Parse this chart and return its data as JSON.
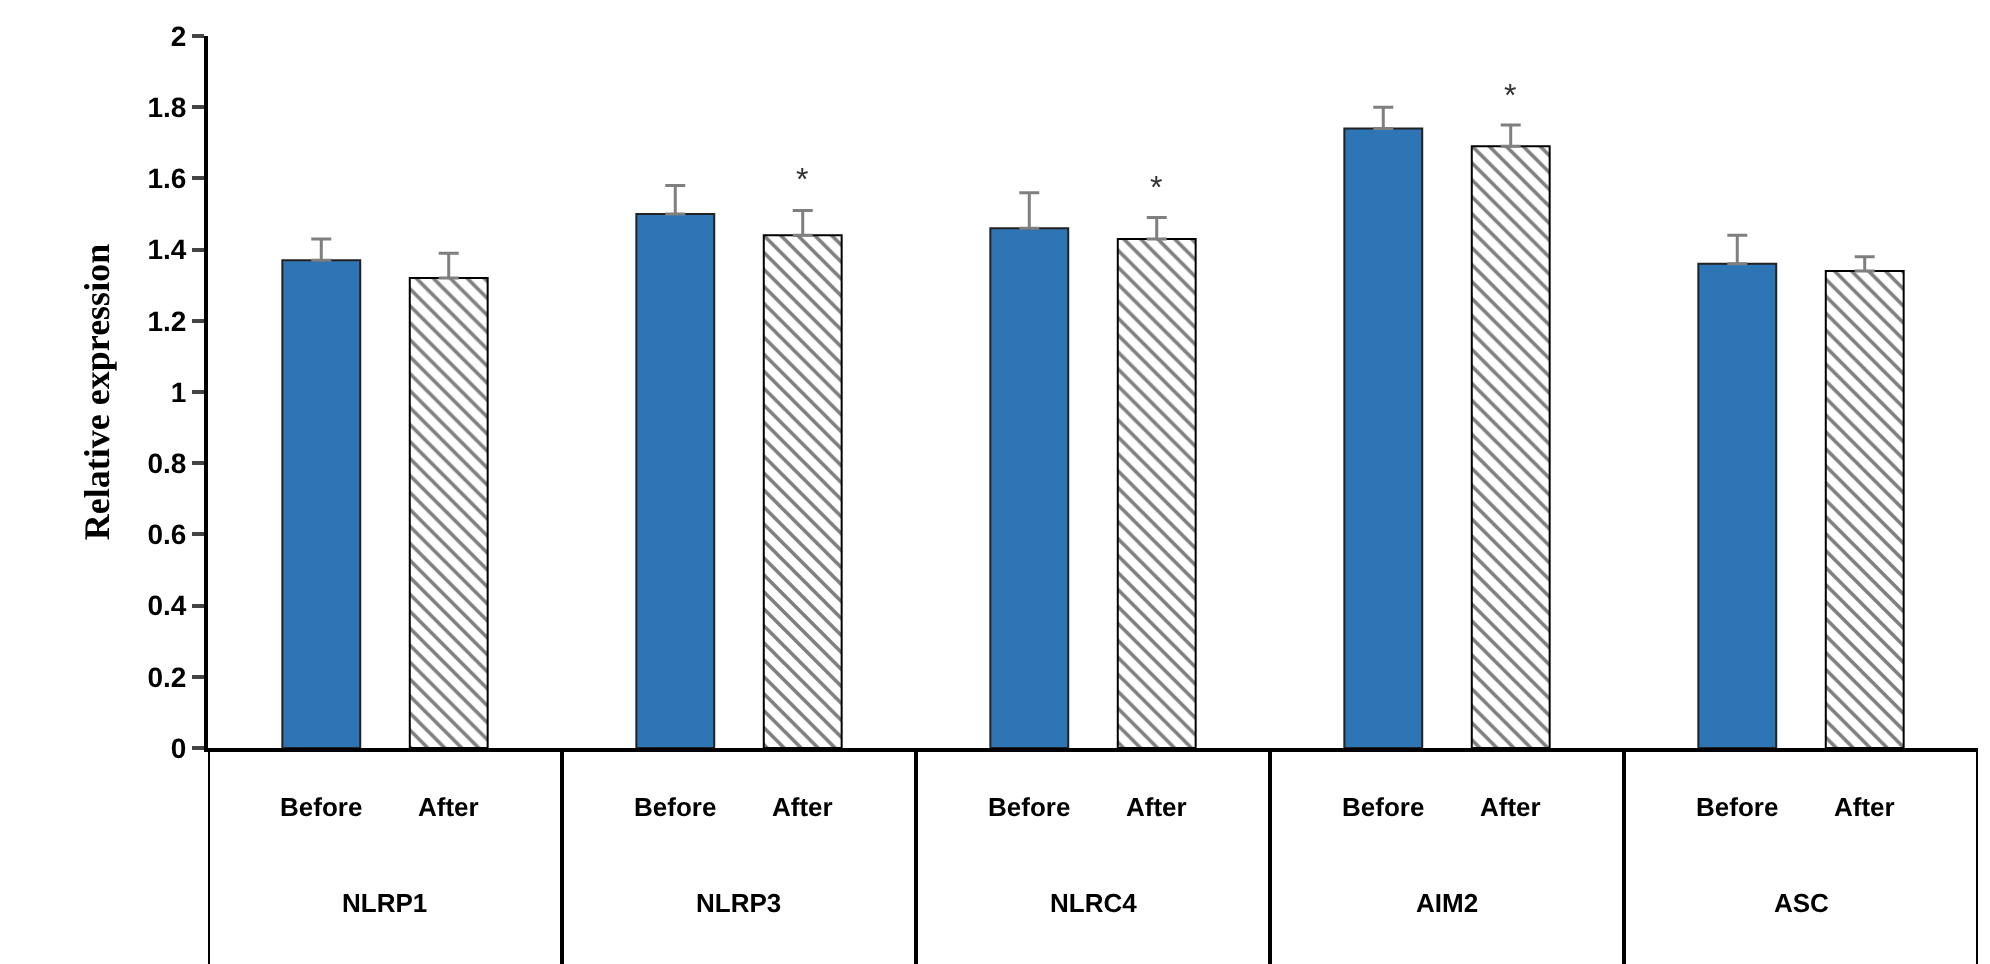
{
  "chart_data": {
    "type": "bar",
    "ylabel": "Relative expression",
    "categories": [
      "NLRP1",
      "NLRP3",
      "NLRC4",
      "AIM2",
      "ASC"
    ],
    "ylim": [
      0,
      2
    ],
    "yticks": [
      0,
      0.2,
      0.4,
      0.6,
      0.8,
      1,
      1.2,
      1.4,
      1.6,
      1.8,
      2
    ],
    "series": [
      {
        "name": "Before",
        "color": "#2e75b6",
        "values": [
          1.37,
          1.5,
          1.46,
          1.74,
          1.36
        ],
        "errors": [
          [
            1.37,
            1.43
          ],
          [
            1.5,
            1.58
          ],
          [
            1.46,
            1.56
          ],
          [
            1.74,
            1.8
          ],
          [
            1.36,
            1.44
          ]
        ]
      },
      {
        "name": "After",
        "color": "#000000",
        "values": [
          1.32,
          1.44,
          1.43,
          1.69,
          1.34
        ],
        "errors": [
          [
            1.32,
            1.39
          ],
          [
            1.44,
            1.51
          ],
          [
            1.43,
            1.49
          ],
          [
            1.69,
            1.75
          ],
          [
            1.34,
            1.38
          ]
        ],
        "value_labels": [
          null,
          "*",
          "*",
          "*",
          null
        ]
      }
    ]
  }
}
